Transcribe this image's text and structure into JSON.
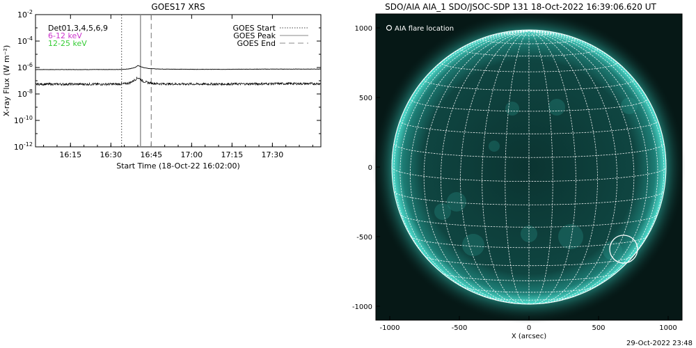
{
  "chart_data": [
    {
      "type": "line",
      "title": "GOES17 XRS",
      "xlabel": "Start Time (18-Oct-22 16:02:00)",
      "ylabel": "X-ray Flux (W m⁻²)",
      "yscale": "log",
      "ylim": [
        1e-12,
        0.01
      ],
      "xlim_minutes": [
        0,
        106
      ],
      "x_ticks": [
        {
          "label": "16:15",
          "min": 13
        },
        {
          "label": "16:30",
          "min": 28
        },
        {
          "label": "16:45",
          "min": 43
        },
        {
          "label": "17:00",
          "min": 58
        },
        {
          "label": "17:15",
          "min": 73
        },
        {
          "label": "17:30",
          "min": 88
        }
      ],
      "y_ticks": [
        {
          "base": "10",
          "exp": "-2",
          "value": 0.01
        },
        {
          "base": "10",
          "exp": "-4",
          "value": 0.0001
        },
        {
          "base": "10",
          "exp": "-6",
          "value": 1e-06
        },
        {
          "base": "10",
          "exp": "-8",
          "value": 1e-08
        },
        {
          "base": "10",
          "exp": "-10",
          "value": 1e-10
        },
        {
          "base": "10",
          "exp": "-12",
          "value": 1e-12
        }
      ],
      "detectors_label": "Det01,3,4,5,6,9",
      "series": [
        {
          "name": "6-12 keV",
          "color": "#cc33cc",
          "x_min": [
            0,
            10,
            20,
            30,
            33,
            35,
            36,
            37,
            38,
            39,
            40,
            42,
            45,
            50,
            60,
            70,
            80,
            90,
            100,
            106
          ],
          "values": [
            7e-07,
            7e-07,
            7e-07,
            7.1e-07,
            7.3e-07,
            8e-07,
            9e-07,
            1e-06,
            1.4e-06,
            1.2e-06,
            1e-06,
            8.5e-07,
            7.8e-07,
            7.5e-07,
            7.3e-07,
            7.3e-07,
            7.5e-07,
            7.6e-07,
            7.6e-07,
            7.6e-07
          ]
        },
        {
          "name": "12-25 keV",
          "color": "#33cc33",
          "x_min": [
            0,
            10,
            20,
            30,
            33,
            35,
            36,
            37,
            38,
            39,
            40,
            42,
            45,
            50,
            60,
            70,
            80,
            90,
            100,
            106
          ],
          "values": [
            5.5e-08,
            5.5e-08,
            5.5e-08,
            5.5e-08,
            5.8e-08,
            7e-08,
            9e-08,
            1.2e-07,
            1.7e-07,
            1.3e-07,
            9e-08,
            7e-08,
            6e-08,
            5.7e-08,
            5.6e-08,
            5.6e-08,
            5.8e-08,
            6e-08,
            6e-08,
            6e-08
          ]
        }
      ],
      "events": [
        {
          "label": "GOES Start",
          "style": "dotted",
          "min": 32
        },
        {
          "label": "GOES Peak",
          "style": "solid",
          "min": 39
        },
        {
          "label": "GOES End",
          "style": "dashed",
          "min": 43
        }
      ]
    },
    {
      "type": "scatter",
      "title": "SDO/AIA AIA_1 SDO/JSOC-SDP 131 18-Oct-2022 16:39:06.620 UT",
      "xlabel": "X (arcsec)",
      "ylabel": "",
      "xlim": [
        -1100,
        1100
      ],
      "ylim": [
        -1100,
        1100
      ],
      "x_ticks": [
        "-1000",
        "-500",
        "0",
        "500",
        "1000"
      ],
      "y_ticks": [
        "1000",
        "500",
        "0",
        "-500",
        "-1000"
      ],
      "solar_radius_arcsec": 985,
      "grid_step_deg": 10,
      "legend_label": "AIA flare location",
      "flare": {
        "x": 680,
        "y": -590,
        "r": 100
      },
      "disk_color": "#0f4a46",
      "limb_color": "#3fd6c6"
    }
  ],
  "footer_timestamp": "29-Oct-2022 23:48"
}
